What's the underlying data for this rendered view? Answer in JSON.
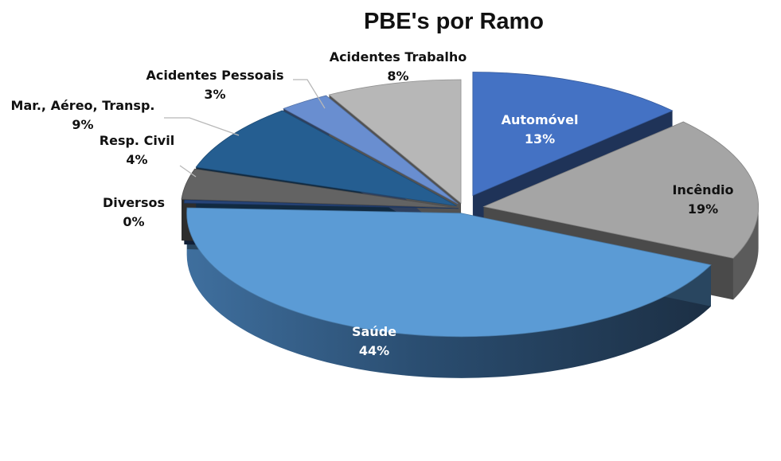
{
  "chart_data": {
    "type": "pie",
    "title": "PBE's por Ramo",
    "slices": [
      {
        "name": "Automóvel",
        "percent_label": "13%",
        "value": 13,
        "color": "#4472C4"
      },
      {
        "name": "Incêndio",
        "percent_label": "19%",
        "value": 19,
        "color": "#A5A5A5"
      },
      {
        "name": "Saúde",
        "percent_label": "44%",
        "value": 44,
        "color": "#5B9BD5"
      },
      {
        "name": "Diversos",
        "percent_label": "0%",
        "value": 0.4,
        "color": "#264478"
      },
      {
        "name": "Resp. Civil",
        "percent_label": "4%",
        "value": 4,
        "color": "#636363"
      },
      {
        "name": "Mar., Aéreo, Transp.",
        "percent_label": "9%",
        "value": 9,
        "color": "#255E91"
      },
      {
        "name": "Acidentes Pessoais",
        "percent_label": "3%",
        "value": 3,
        "color": "#698ED0"
      },
      {
        "name": "Acidentes Trabalho",
        "percent_label": "8%",
        "value": 8,
        "color": "#B7B7B7"
      }
    ],
    "style": "3d-exploded",
    "legend": "none"
  }
}
